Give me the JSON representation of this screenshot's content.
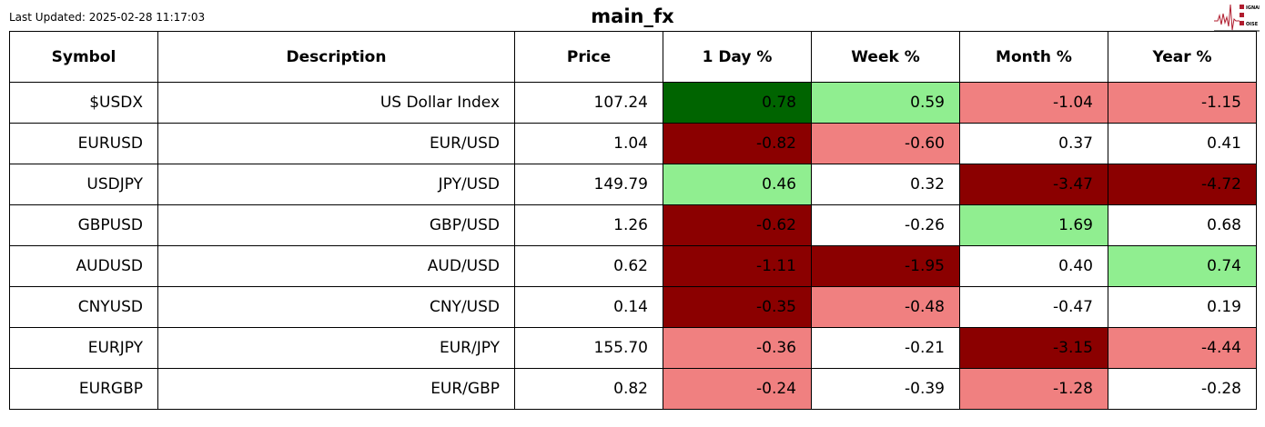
{
  "header": {
    "last_updated": "Last Updated: 2025-02-28 11:17:03",
    "title": "main_fx",
    "logo_text": "SIGNAL 2 NOISE"
  },
  "colors": {
    "dg": "#006400",
    "lg": "#90EE90",
    "lc": "#F08080",
    "dr": "#8B0000",
    "w": "#FFFFFF"
  },
  "columns": [
    "Symbol",
    "Description",
    "Price",
    "1 Day %",
    "Week %",
    "Month %",
    "Year %"
  ],
  "rows": [
    {
      "symbol": "$USDX",
      "description": "US Dollar Index",
      "price": "107.24",
      "values": [
        "0.78",
        "0.59",
        "-1.04",
        "-1.15"
      ],
      "colors": [
        "dg",
        "lg",
        "lc",
        "lc"
      ]
    },
    {
      "symbol": "EURUSD",
      "description": "EUR/USD",
      "price": "1.04",
      "values": [
        "-0.82",
        "-0.60",
        "0.37",
        "0.41"
      ],
      "colors": [
        "dr",
        "lc",
        "w",
        "w"
      ]
    },
    {
      "symbol": "USDJPY",
      "description": "JPY/USD",
      "price": "149.79",
      "values": [
        "0.46",
        "0.32",
        "-3.47",
        "-4.72"
      ],
      "colors": [
        "lg",
        "w",
        "dr",
        "dr"
      ]
    },
    {
      "symbol": "GBPUSD",
      "description": "GBP/USD",
      "price": "1.26",
      "values": [
        "-0.62",
        "-0.26",
        "1.69",
        "0.68"
      ],
      "colors": [
        "dr",
        "w",
        "lg",
        "w"
      ]
    },
    {
      "symbol": "AUDUSD",
      "description": "AUD/USD",
      "price": "0.62",
      "values": [
        "-1.11",
        "-1.95",
        "0.40",
        "0.74"
      ],
      "colors": [
        "dr",
        "dr",
        "w",
        "lg"
      ]
    },
    {
      "symbol": "CNYUSD",
      "description": "CNY/USD",
      "price": "0.14",
      "values": [
        "-0.35",
        "-0.48",
        "-0.47",
        "0.19"
      ],
      "colors": [
        "dr",
        "lc",
        "w",
        "w"
      ]
    },
    {
      "symbol": "EURJPY",
      "description": "EUR/JPY",
      "price": "155.70",
      "values": [
        "-0.36",
        "-0.21",
        "-3.15",
        "-4.44"
      ],
      "colors": [
        "lc",
        "w",
        "dr",
        "lc"
      ]
    },
    {
      "symbol": "EURGBP",
      "description": "EUR/GBP",
      "price": "0.82",
      "values": [
        "-0.24",
        "-0.39",
        "-1.28",
        "-0.28"
      ],
      "colors": [
        "lc",
        "w",
        "lc",
        "w"
      ]
    }
  ]
}
